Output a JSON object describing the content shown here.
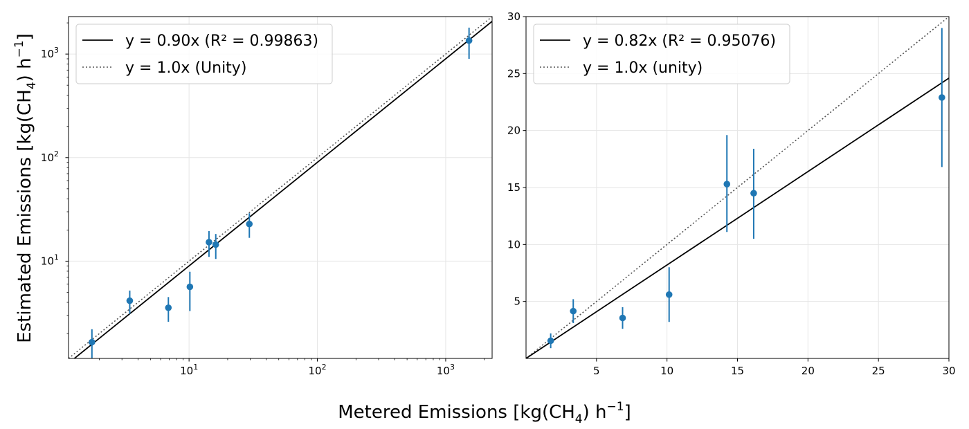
{
  "figure": {
    "xlabel_main": "Metered Emissions [kg(CH",
    "xlabel_sub": "4",
    "xlabel_tail": ") h",
    "xlabel_sup": "−1",
    "xlabel_end": "]",
    "ylabel_main": "Estimated Emissions [kg(CH",
    "ylabel_sub": "4",
    "ylabel_tail": ") h",
    "ylabel_sup": "−1",
    "ylabel_end": "]"
  },
  "colors": {
    "points": "#1f77b4",
    "fit_line": "#000000",
    "unity_line": "#555555",
    "grid": "#e6e6e6"
  },
  "chart_data": [
    {
      "type": "scatter",
      "scale": "log",
      "xlim": [
        1.15,
        2300
      ],
      "ylim": [
        1.15,
        2300
      ],
      "grid": true,
      "legend_placement": "top-left",
      "x_ticks": [
        {
          "base": "10",
          "exp": "1",
          "v": 10
        },
        {
          "base": "10",
          "exp": "2",
          "v": 100
        },
        {
          "base": "10",
          "exp": "3",
          "v": 1000
        }
      ],
      "y_ticks": [
        {
          "base": "10",
          "exp": "1",
          "v": 10
        },
        {
          "base": "10",
          "exp": "2",
          "v": 100
        },
        {
          "base": "10",
          "exp": "3",
          "v": 1000
        }
      ],
      "legend": [
        {
          "key": "fit",
          "label": "y = 0.90x   (R² = 0.99863)"
        },
        {
          "key": "unity",
          "label": "y = 1.0x (Unity)"
        }
      ],
      "fit_slope": 0.9,
      "unity_slope": 1.0,
      "points": [
        {
          "x": 1.75,
          "y": 1.65,
          "ylow": 1.1,
          "yhigh": 2.2
        },
        {
          "x": 3.45,
          "y": 4.15,
          "ylow": 3.1,
          "yhigh": 5.2
        },
        {
          "x": 6.9,
          "y": 3.55,
          "ylow": 2.6,
          "yhigh": 4.5
        },
        {
          "x": 10.15,
          "y": 5.65,
          "ylow": 3.3,
          "yhigh": 7.9
        },
        {
          "x": 14.3,
          "y": 15.25,
          "ylow": 11.0,
          "yhigh": 19.5
        },
        {
          "x": 16.15,
          "y": 14.45,
          "ylow": 10.5,
          "yhigh": 18.3
        },
        {
          "x": 29.5,
          "y": 22.85,
          "ylow": 16.8,
          "yhigh": 29.0
        },
        {
          "x": 1520,
          "y": 1350,
          "ylow": 900,
          "yhigh": 1800
        }
      ]
    },
    {
      "type": "scatter",
      "scale": "linear",
      "xlim": [
        0,
        30
      ],
      "ylim": [
        0,
        30
      ],
      "grid": true,
      "legend_placement": "top-left",
      "x_ticks": [
        {
          "label": "5",
          "v": 5
        },
        {
          "label": "10",
          "v": 10
        },
        {
          "label": "15",
          "v": 15
        },
        {
          "label": "20",
          "v": 20
        },
        {
          "label": "25",
          "v": 25
        },
        {
          "label": "30",
          "v": 30
        }
      ],
      "y_ticks": [
        {
          "label": "5",
          "v": 5
        },
        {
          "label": "10",
          "v": 10
        },
        {
          "label": "15",
          "v": 15
        },
        {
          "label": "20",
          "v": 20
        },
        {
          "label": "25",
          "v": 25
        },
        {
          "label": "30",
          "v": 30
        }
      ],
      "legend": [
        {
          "key": "fit",
          "label": "y = 0.82x   (R² = 0.95076)"
        },
        {
          "key": "unity",
          "label": "y = 1.0x (unity)"
        }
      ],
      "fit_slope": 0.82,
      "unity_slope": 1.0,
      "points": [
        {
          "x": 1.75,
          "y": 1.55,
          "ylow": 0.9,
          "yhigh": 2.2
        },
        {
          "x": 3.35,
          "y": 4.15,
          "ylow": 3.1,
          "yhigh": 5.2
        },
        {
          "x": 6.85,
          "y": 3.55,
          "ylow": 2.6,
          "yhigh": 4.5
        },
        {
          "x": 10.15,
          "y": 5.6,
          "ylow": 3.2,
          "yhigh": 8.0
        },
        {
          "x": 14.25,
          "y": 15.3,
          "ylow": 11.1,
          "yhigh": 19.6
        },
        {
          "x": 16.15,
          "y": 14.5,
          "ylow": 10.5,
          "yhigh": 18.4
        },
        {
          "x": 29.5,
          "y": 22.9,
          "ylow": 16.8,
          "yhigh": 29.0
        }
      ]
    }
  ]
}
